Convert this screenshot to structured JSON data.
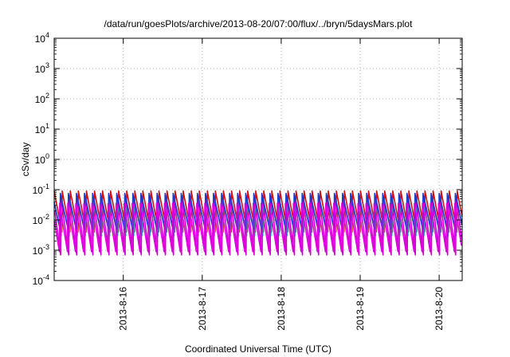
{
  "chart_data": {
    "type": "line",
    "title": "/data/run/goesPlots/archive/2013-08-20/07:00/flux/../bryn/5daysMars.plot",
    "xlabel": "Coordinated Universal Time (UTC)",
    "ylabel": "cSv/day",
    "yscale": "log",
    "ylim": [
      0.0001,
      10000
    ],
    "y_ticks": [
      {
        "value": 0.0001,
        "base": "10",
        "exp": "-4"
      },
      {
        "value": 0.001,
        "base": "10",
        "exp": "-3"
      },
      {
        "value": 0.01,
        "base": "10",
        "exp": "-2"
      },
      {
        "value": 0.1,
        "base": "10",
        "exp": "-1"
      },
      {
        "value": 1,
        "base": "10",
        "exp": "0"
      },
      {
        "value": 10,
        "base": "10",
        "exp": "1"
      },
      {
        "value": 100,
        "base": "10",
        "exp": "2"
      },
      {
        "value": 1000,
        "base": "10",
        "exp": "3"
      },
      {
        "value": 10000,
        "base": "10",
        "exp": "4"
      }
    ],
    "xlim": [
      "2013-08-15T03:00",
      "2013-08-20T07:00"
    ],
    "x_ticks": [
      "2013-8-16",
      "2013-8-17",
      "2013-8-18",
      "2013-8-19",
      "2013-8-20"
    ],
    "grid": true,
    "legend": "none",
    "cycle_period_hours": 2.45,
    "series": [
      {
        "color": "#d01010",
        "peak": 0.09,
        "trough": 0.004
      },
      {
        "color": "#10c8c8",
        "peak": 0.05,
        "trough": 0.003
      },
      {
        "color": "#d000d0",
        "peak": 0.06,
        "trough": 0.0007
      },
      {
        "color": "#1a3ccc",
        "peak": 0.075,
        "trough": 0.005
      },
      {
        "color": "#e000e0",
        "peak": 0.035,
        "trough": 0.0009
      }
    ]
  }
}
